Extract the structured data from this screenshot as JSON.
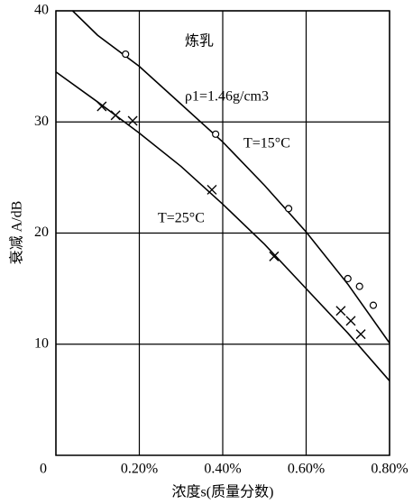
{
  "chart_data": {
    "type": "scatter",
    "xlabel": "浓度s(质量分数)",
    "ylabel": "衰减 A/dB",
    "annotations": [
      "炼乳",
      "ρ1=1.46g/cm3"
    ],
    "xlim": [
      0,
      0.8
    ],
    "xticks": [
      0,
      {
        "value": 0.2,
        "label": "0.20%"
      },
      {
        "value": 0.4,
        "label": "0.40%"
      },
      {
        "value": 0.6,
        "label": "0.60%"
      },
      {
        "value": 0.8,
        "label": "0.80%"
      }
    ],
    "ylim": [
      0,
      40
    ],
    "yticks": [
      10,
      20,
      30,
      40
    ],
    "grid": true,
    "color": "#000000",
    "series": [
      {
        "name": "T=15°C",
        "marker": "circle",
        "x": [
          0.167,
          0.383,
          0.558,
          0.7,
          0.728,
          0.761
        ],
        "values": [
          36.1,
          28.9,
          22.2,
          15.9,
          15.2,
          13.5
        ],
        "curve": {
          "x": [
            0.04,
            0.1,
            0.2,
            0.3,
            0.4,
            0.5,
            0.6,
            0.7,
            0.8
          ],
          "values": [
            40,
            37.8,
            35.0,
            31.6,
            28.2,
            24.3,
            20.1,
            15.4,
            10.1
          ]
        }
      },
      {
        "name": "T=25°C",
        "marker": "cross",
        "x": [
          0.11,
          0.143,
          0.184,
          0.374,
          0.523,
          0.683,
          0.707,
          0.731
        ],
        "values": [
          31.4,
          30.6,
          30.1,
          23.9,
          17.9,
          13.0,
          12.1,
          10.9
        ],
        "curve": {
          "x": [
            0,
            0.1,
            0.2,
            0.3,
            0.4,
            0.5,
            0.6,
            0.7,
            0.8
          ],
          "values": [
            34.5,
            31.8,
            29.0,
            26.0,
            22.6,
            19.0,
            15.0,
            11.0,
            6.7
          ]
        }
      }
    ]
  }
}
